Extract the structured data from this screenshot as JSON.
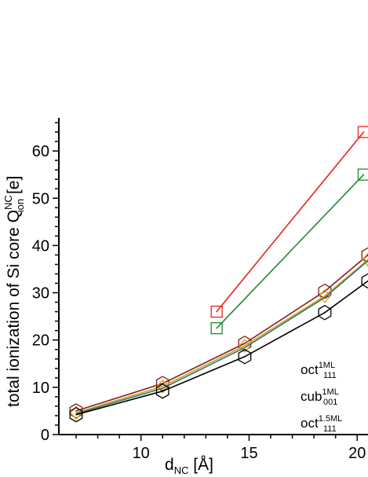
{
  "chart_data": {
    "type": "scatter",
    "xlabel": "d",
    "xlabel_sub": "NC",
    "xlabel_unit": " [Å]",
    "ylabel": "total ionization of Si core Q",
    "ylabel_sup": "NC",
    "ylabel_sub": "ion",
    "ylabel_unit": " [e]",
    "xlim": [
      6.2,
      20.5
    ],
    "ylim": [
      0,
      67
    ],
    "x_ticks": [
      10,
      15,
      20
    ],
    "y_ticks": [
      0,
      10,
      20,
      30,
      40,
      50,
      60
    ],
    "series": [
      {
        "color": "#e8201c",
        "marker": "square",
        "x": [
          13.5,
          20.3
        ],
        "y": [
          26,
          64
        ]
      },
      {
        "color": "#1f8a2a",
        "marker": "square",
        "x": [
          13.5,
          20.3
        ],
        "y": [
          22.5,
          55
        ]
      },
      {
        "color": "#8b1a1a",
        "marker": "hexagon",
        "x": [
          7.0,
          11.0,
          14.8,
          18.5,
          20.5
        ],
        "y": [
          5.0,
          10.8,
          19.3,
          30.3,
          38.0
        ]
      },
      {
        "color": "#d4a017",
        "marker": "diamond",
        "x": [
          7.0,
          11.0,
          14.8,
          18.5,
          20.5
        ],
        "y": [
          4.6,
          10.2,
          18.8,
          29.3,
          37.0
        ]
      },
      {
        "color": "#2a7a7a",
        "marker": "none",
        "x": [
          7.0,
          11.0,
          14.8,
          18.5,
          20.5
        ],
        "y": [
          4.4,
          9.8,
          18.4,
          29.0,
          36.8
        ]
      },
      {
        "color": "#000000",
        "marker": "hexagon",
        "x": [
          7.0,
          11.0,
          14.8,
          18.5,
          20.5
        ],
        "y": [
          4.2,
          9.2,
          16.5,
          25.8,
          32.5
        ]
      }
    ],
    "legend": [
      {
        "text": "oct",
        "sup": "1ML",
        "sub": "111"
      },
      {
        "text": "cub",
        "sup": "1ML",
        "sub": "001"
      },
      {
        "text": "oct",
        "sup": "1.5ML",
        "sub": "111"
      }
    ]
  }
}
